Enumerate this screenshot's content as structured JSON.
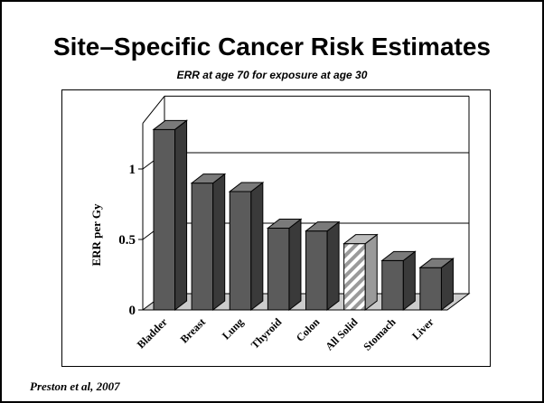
{
  "slide": {
    "title": "Site–Specific Cancer Risk Estimates",
    "subtitle": "ERR at age 70 for exposure at age 30",
    "credit": "Preston et al, 2007"
  },
  "chart_data": {
    "type": "bar",
    "title": "",
    "xlabel": "",
    "ylabel": "ERR per Gy",
    "categories": [
      "Bladder",
      "Breast",
      "Lung",
      "Thyroid",
      "Colon",
      "All Solid",
      "Stomach",
      "Liver"
    ],
    "values": [
      1.28,
      0.9,
      0.84,
      0.58,
      0.56,
      0.47,
      0.35,
      0.3
    ],
    "highlighted_category": "All Solid",
    "ylim": [
      0,
      1.35
    ],
    "yticks": [
      0,
      0.5,
      1
    ],
    "ytick_labels": [
      "0",
      "0.5",
      "1"
    ],
    "grid": true,
    "style": "3d",
    "colors": {
      "bar": "#5b5b5b",
      "bar_dark": "#3a3a3a",
      "bar_top": "#7a7a7a",
      "floor": "#cccccc",
      "highlight": "#9a9a9a"
    }
  }
}
